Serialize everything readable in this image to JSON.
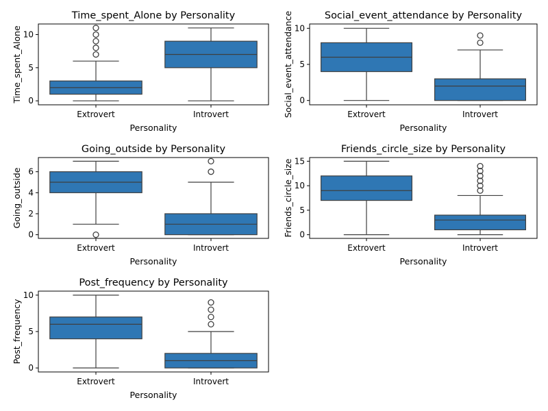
{
  "chart_data": [
    {
      "type": "boxplot",
      "title": "Time_spent_Alone by Personality",
      "xlabel": "Personality",
      "ylabel": "Time_spent_Alone",
      "categories": [
        "Extrovert",
        "Introvert"
      ],
      "ylim": [
        -0.6,
        11.6
      ],
      "yticks": [
        0,
        5,
        10
      ],
      "color": "#2f77b4",
      "boxes": [
        {
          "category": "Extrovert",
          "whisker_low": 0,
          "q1": 1,
          "median": 2,
          "q3": 3,
          "whisker_high": 6,
          "outliers": [
            7,
            8,
            9,
            10,
            11
          ]
        },
        {
          "category": "Introvert",
          "whisker_low": 0,
          "q1": 5,
          "median": 7,
          "q3": 9,
          "whisker_high": 11,
          "outliers": []
        }
      ]
    },
    {
      "type": "boxplot",
      "title": "Social_event_attendance by Personality",
      "xlabel": "Personality",
      "ylabel": "Social_event_attendance",
      "categories": [
        "Extrovert",
        "Introvert"
      ],
      "ylim": [
        -0.6,
        10.6
      ],
      "yticks": [
        0,
        5,
        10
      ],
      "color": "#2f77b4",
      "boxes": [
        {
          "category": "Extrovert",
          "whisker_low": 0,
          "q1": 4,
          "median": 6,
          "q3": 8,
          "whisker_high": 10,
          "outliers": []
        },
        {
          "category": "Introvert",
          "whisker_low": 0,
          "q1": 0,
          "median": 2,
          "q3": 3,
          "whisker_high": 7,
          "outliers": [
            8,
            9
          ]
        }
      ]
    },
    {
      "type": "boxplot",
      "title": "Going_outside by Personality",
      "xlabel": "Personality",
      "ylabel": "Going_outside",
      "categories": [
        "Extrovert",
        "Introvert"
      ],
      "ylim": [
        -0.35,
        7.35
      ],
      "yticks": [
        0,
        2,
        4,
        6
      ],
      "color": "#2f77b4",
      "boxes": [
        {
          "category": "Extrovert",
          "whisker_low": 1,
          "q1": 4,
          "median": 5,
          "q3": 6,
          "whisker_high": 7,
          "outliers": [
            0
          ]
        },
        {
          "category": "Introvert",
          "whisker_low": 0,
          "q1": 0,
          "median": 1,
          "q3": 2,
          "whisker_high": 5,
          "outliers": [
            6,
            7
          ]
        }
      ]
    },
    {
      "type": "boxplot",
      "title": "Friends_circle_size by Personality",
      "xlabel": "Personality",
      "ylabel": "Friends_circle_size",
      "categories": [
        "Extrovert",
        "Introvert"
      ],
      "ylim": [
        -0.75,
        15.75
      ],
      "yticks": [
        0,
        5,
        10,
        15
      ],
      "color": "#2f77b4",
      "boxes": [
        {
          "category": "Extrovert",
          "whisker_low": 0,
          "q1": 7,
          "median": 9,
          "q3": 12,
          "whisker_high": 15,
          "outliers": []
        },
        {
          "category": "Introvert",
          "whisker_low": 0,
          "q1": 1,
          "median": 3,
          "q3": 4,
          "whisker_high": 8,
          "outliers": [
            9,
            10,
            11,
            12,
            13,
            14
          ]
        }
      ]
    },
    {
      "type": "boxplot",
      "title": "Post_frequency by Personality",
      "xlabel": "Personality",
      "ylabel": "Post_frequency",
      "categories": [
        "Extrovert",
        "Introvert"
      ],
      "ylim": [
        -0.55,
        10.55
      ],
      "yticks": [
        0,
        5,
        10
      ],
      "color": "#2f77b4",
      "boxes": [
        {
          "category": "Extrovert",
          "whisker_low": 0,
          "q1": 4,
          "median": 6,
          "q3": 7,
          "whisker_high": 10,
          "outliers": []
        },
        {
          "category": "Introvert",
          "whisker_low": 0,
          "q1": 0,
          "median": 1,
          "q3": 2,
          "whisker_high": 5,
          "outliers": [
            6,
            7,
            8,
            9
          ]
        }
      ]
    }
  ]
}
